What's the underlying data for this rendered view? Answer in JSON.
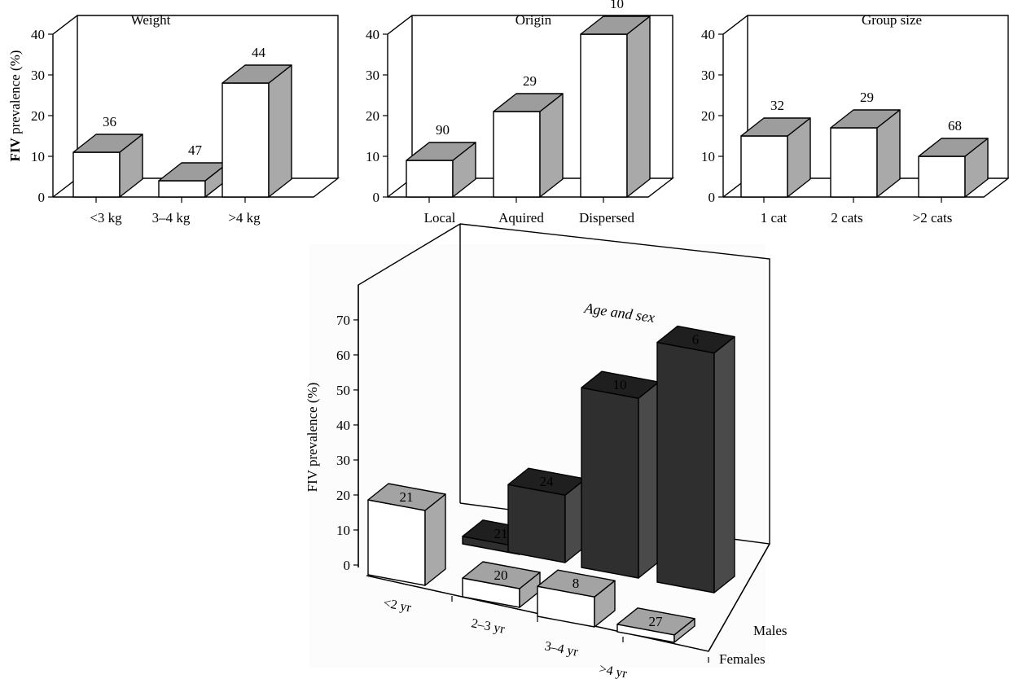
{
  "figure": {
    "y_axis_label": "FIV prevalence (%)",
    "y_axis_label_bold": "FIV",
    "y_axis_label_rest": " prevalence (%)"
  },
  "chart_data": [
    {
      "type": "bar",
      "title": "Weight",
      "categories": [
        "<3 kg",
        "3–4 kg",
        ">4 kg"
      ],
      "values": [
        11,
        4,
        28
      ],
      "sample_labels": [
        "36",
        "47",
        "44"
      ],
      "ylabel": "FIV prevalence (%)",
      "yticks": [
        "0",
        "10",
        "20",
        "30",
        "40"
      ],
      "ylim": [
        0,
        40
      ],
      "grid": false
    },
    {
      "type": "bar",
      "title": "Origin",
      "categories": [
        "Local",
        "Aquired",
        "Dispersed"
      ],
      "values": [
        9,
        21,
        40
      ],
      "sample_labels": [
        "90",
        "29",
        "10"
      ],
      "yticks": [
        "0",
        "10",
        "20",
        "30",
        "40"
      ],
      "ylim": [
        0,
        40
      ],
      "grid": false
    },
    {
      "type": "bar",
      "title": "Group size",
      "categories": [
        "1 cat",
        "2 cats",
        ">2 cats"
      ],
      "values": [
        15,
        17,
        10
      ],
      "sample_labels": [
        "32",
        "29",
        "68"
      ],
      "yticks": [
        "0",
        "10",
        "20",
        "30",
        "40"
      ],
      "ylim": [
        0,
        40
      ],
      "grid": false
    },
    {
      "type": "bar",
      "title": "Age and sex",
      "categories": [
        "<2 yr",
        "2–3 yr",
        "3–4 yr",
        ">4 yr"
      ],
      "series": [
        {
          "name": "Males",
          "values": [
            2,
            18,
            48,
            64
          ],
          "sample_labels": [
            "21",
            "24",
            "10",
            "6"
          ],
          "color": "#2f2f2f"
        },
        {
          "name": "Females",
          "values": [
            20,
            5,
            8,
            2
          ],
          "sample_labels": [
            "21",
            "20",
            "8",
            "27"
          ],
          "color": "#ffffff",
          "side_color": "#a9a9a9"
        }
      ],
      "ylabel": "FIV prevalence (%)",
      "yticks": [
        "0",
        "10",
        "20",
        "30",
        "40",
        "50",
        "60",
        "70"
      ],
      "ylim": [
        0,
        70
      ],
      "grid": false
    }
  ],
  "background_text": "Aquired"
}
